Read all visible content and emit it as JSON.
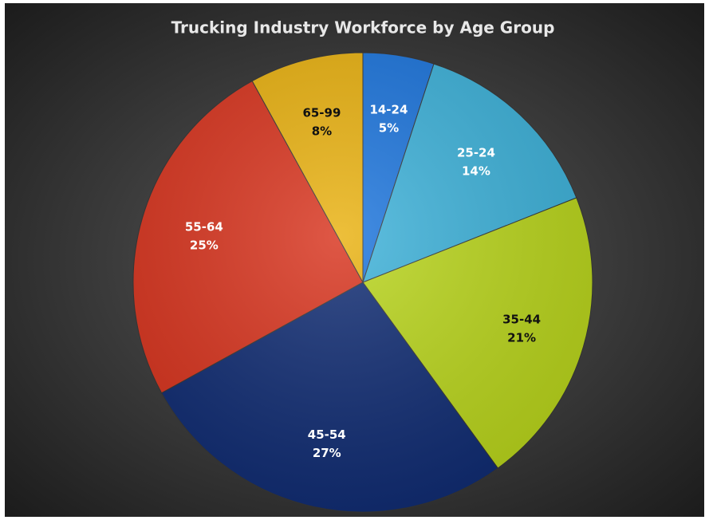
{
  "chart_data": {
    "type": "pie",
    "title": "Trucking Industry Workforce by Age Group",
    "categories": [
      "14-24",
      "25-24",
      "35-44",
      "45-54",
      "55-64",
      "65-99"
    ],
    "values": [
      5,
      14,
      21,
      27,
      25,
      8
    ],
    "value_labels": [
      "5%",
      "14%",
      "21%",
      "27%",
      "25%",
      "8%"
    ],
    "colors": [
      "#1b74dc",
      "#3cb1d9",
      "#b9d51b",
      "#0f2b72",
      "#d8331d",
      "#e9b10f"
    ]
  }
}
